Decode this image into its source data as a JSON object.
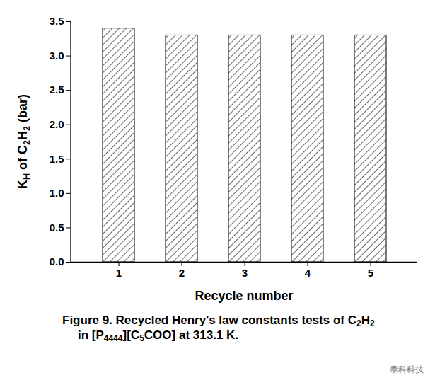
{
  "chart_data": {
    "type": "bar",
    "title": "Figure 9. Recycled Henry's law constants tests of C2H2 in [P4444][C5COO] at 313.1 K.",
    "x_label": "Recycle number",
    "y_label": "KH of C2H2 (bar)",
    "categories": [
      "1",
      "2",
      "3",
      "4",
      "5"
    ],
    "values": [
      3.4,
      3.3,
      3.3,
      3.3,
      3.3
    ],
    "color": "#000000",
    "ylim": [
      0,
      3.5
    ],
    "yticks": [
      {
        "value": 0,
        "label": "0.0"
      },
      {
        "value": 0.5,
        "label": "0.5"
      },
      {
        "value": 1,
        "label": "1.0"
      },
      {
        "value": 1.5,
        "label": "1.5"
      },
      {
        "value": 2,
        "label": "2.0"
      },
      {
        "value": 2.5,
        "label": "2.5"
      },
      {
        "value": 3,
        "label": "3.0"
      },
      {
        "value": 3.5,
        "label": "3.5"
      }
    ],
    "grid": false,
    "annotations": [
      "泰科科技"
    ]
  }
}
